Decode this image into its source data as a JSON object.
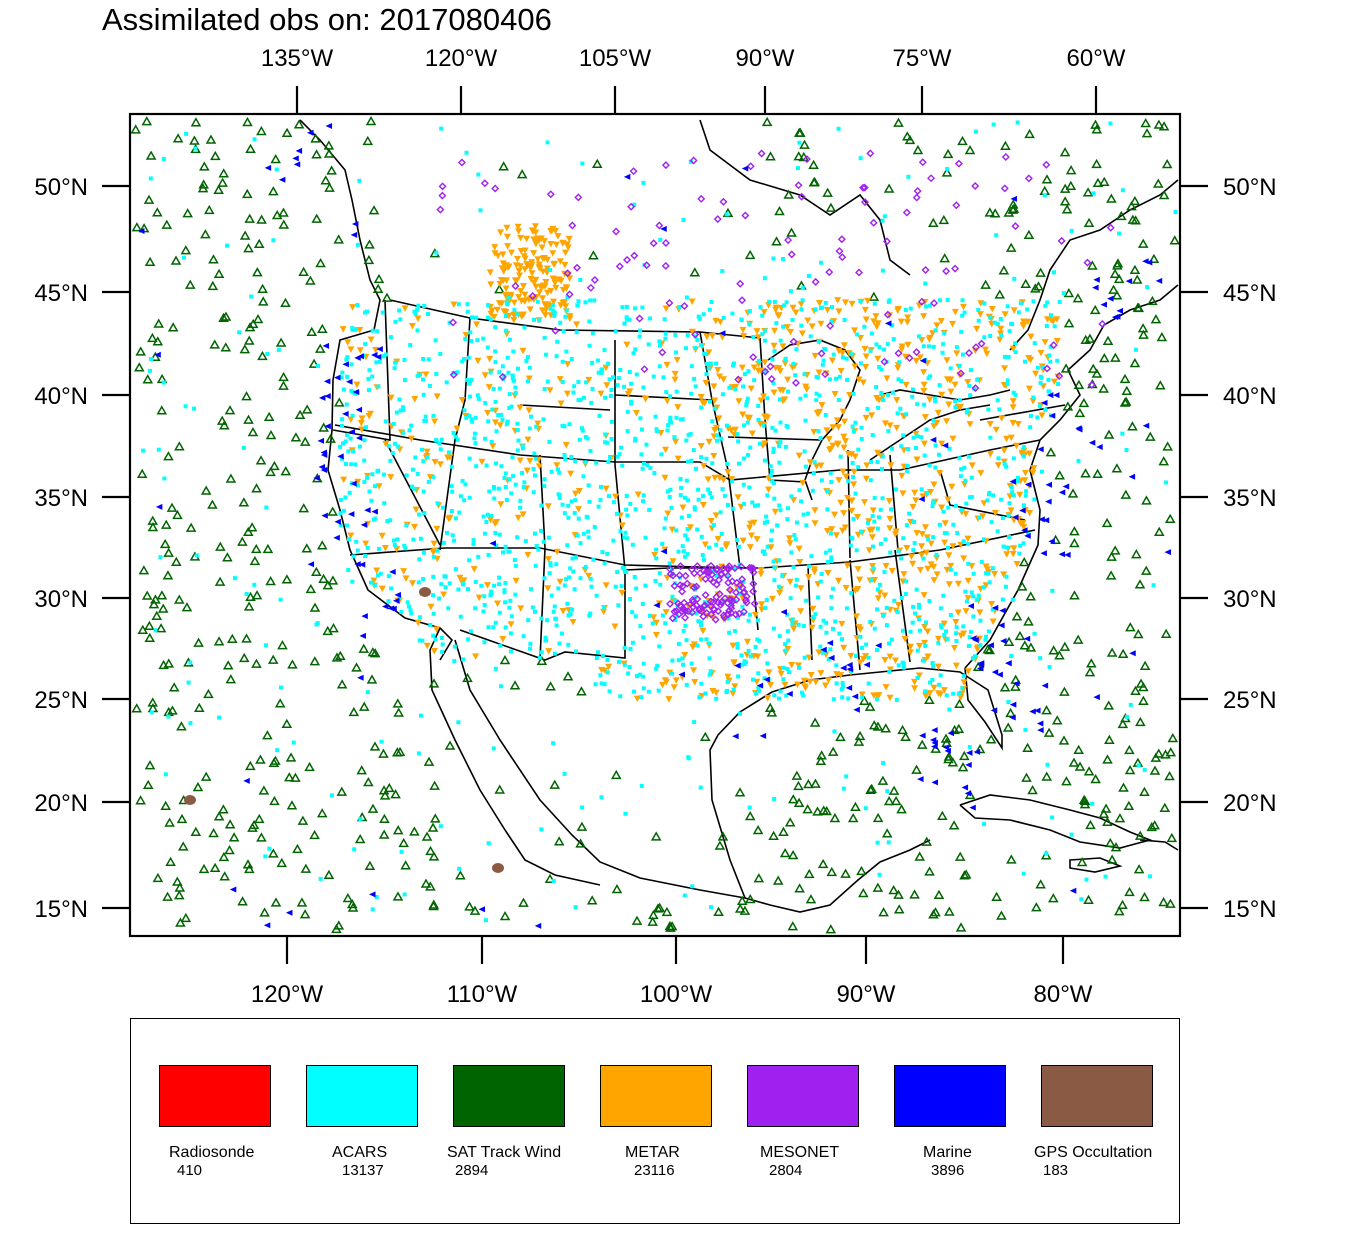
{
  "title": "Assimilated obs on: 2017080406",
  "top_axis": [
    "135°W",
    "120°W",
    "105°W",
    "90°W",
    "75°W",
    "60°W"
  ],
  "bottom_axis": [
    "120°W",
    "110°W",
    "100°W",
    "90°W",
    "80°W"
  ],
  "left_axis": [
    "50°N",
    "45°N",
    "40°N",
    "35°N",
    "30°N",
    "25°N",
    "20°N",
    "15°N"
  ],
  "right_axis": [
    "50°N",
    "45°N",
    "40°N",
    "35°N",
    "30°N",
    "25°N",
    "20°N",
    "15°N"
  ],
  "legend": [
    {
      "label": "Radiosonde",
      "count": "410",
      "color": "#ff0000"
    },
    {
      "label": "ACARS",
      "count": "13137",
      "color": "#00ffff"
    },
    {
      "label": "SAT Track Wind",
      "count": "2894",
      "color": "#006400"
    },
    {
      "label": "METAR",
      "count": "23116",
      "color": "#ffa500"
    },
    {
      "label": "MESONET",
      "count": "2804",
      "color": "#a020f0"
    },
    {
      "label": "Marine",
      "count": "3896",
      "color": "#0000ff"
    },
    {
      "label": "GPS Occultation",
      "count": "183",
      "color": "#8b5a44"
    }
  ],
  "symbols": {
    "sat_track_wind": "open-triangle-up",
    "acars": "small-square",
    "metar": "triangle-down",
    "mesonet": "diamond",
    "marine": "triangle-left",
    "gps_occultation": "blob"
  }
}
